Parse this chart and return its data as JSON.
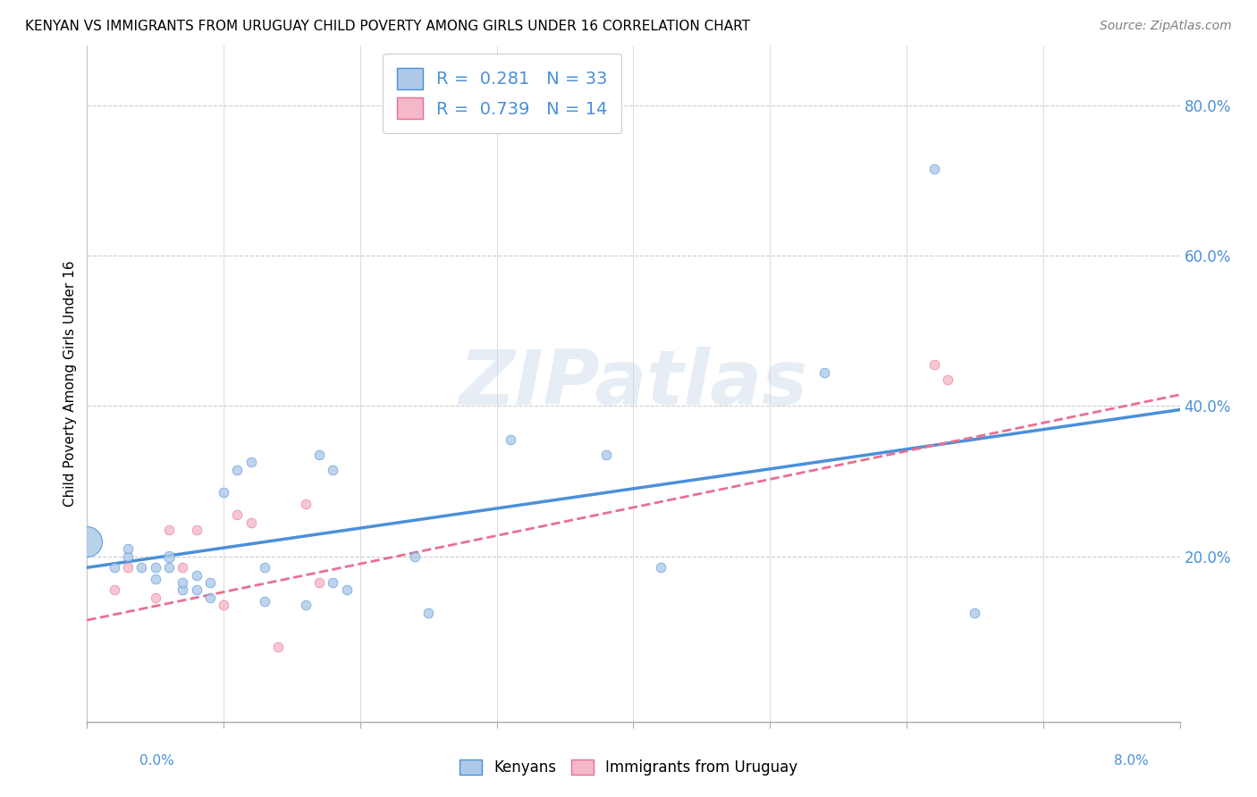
{
  "title": "KENYAN VS IMMIGRANTS FROM URUGUAY CHILD POVERTY AMONG GIRLS UNDER 16 CORRELATION CHART",
  "source": "Source: ZipAtlas.com",
  "ylabel": "Child Poverty Among Girls Under 16",
  "xlim": [
    0.0,
    0.08
  ],
  "ylim": [
    -0.02,
    0.88
  ],
  "kenyan_R": 0.281,
  "kenyan_N": 33,
  "uruguay_R": 0.739,
  "uruguay_N": 14,
  "kenyan_color": "#aec9e8",
  "uruguay_color": "#f4b8c8",
  "kenyan_line_color": "#4a90d9",
  "uruguay_line_color": "#e87090",
  "kenyan_scatter_x": [
    0.0,
    0.002,
    0.003,
    0.003,
    0.004,
    0.005,
    0.005,
    0.006,
    0.006,
    0.007,
    0.007,
    0.008,
    0.008,
    0.009,
    0.009,
    0.01,
    0.011,
    0.012,
    0.013,
    0.013,
    0.016,
    0.017,
    0.018,
    0.018,
    0.019,
    0.024,
    0.025,
    0.031,
    0.038,
    0.042,
    0.054,
    0.062,
    0.065
  ],
  "kenyan_scatter_y": [
    0.22,
    0.185,
    0.2,
    0.21,
    0.185,
    0.17,
    0.185,
    0.185,
    0.2,
    0.155,
    0.165,
    0.175,
    0.155,
    0.145,
    0.165,
    0.285,
    0.315,
    0.325,
    0.14,
    0.185,
    0.135,
    0.335,
    0.315,
    0.165,
    0.155,
    0.2,
    0.125,
    0.355,
    0.335,
    0.185,
    0.445,
    0.715,
    0.125
  ],
  "kenyan_scatter_sizes": [
    600,
    60,
    60,
    60,
    60,
    60,
    60,
    60,
    80,
    60,
    60,
    60,
    60,
    60,
    60,
    60,
    60,
    60,
    60,
    60,
    60,
    60,
    60,
    60,
    60,
    60,
    60,
    60,
    60,
    60,
    60,
    60,
    60
  ],
  "uruguay_scatter_x": [
    0.002,
    0.003,
    0.005,
    0.006,
    0.007,
    0.008,
    0.01,
    0.011,
    0.012,
    0.014,
    0.016,
    0.017,
    0.062,
    0.063
  ],
  "uruguay_scatter_y": [
    0.155,
    0.185,
    0.145,
    0.235,
    0.185,
    0.235,
    0.135,
    0.255,
    0.245,
    0.08,
    0.27,
    0.165,
    0.455,
    0.435
  ],
  "uruguay_scatter_sizes": [
    60,
    60,
    60,
    60,
    60,
    60,
    60,
    60,
    60,
    60,
    60,
    60,
    60,
    60
  ],
  "kenyan_trend_x": [
    0.0,
    0.08
  ],
  "kenyan_trend_y": [
    0.185,
    0.395
  ],
  "uruguay_trend_x": [
    0.0,
    0.08
  ],
  "uruguay_trend_y": [
    0.115,
    0.415
  ],
  "ytick_positions": [
    0.0,
    0.2,
    0.4,
    0.6,
    0.8
  ],
  "ytick_labels": [
    "",
    "20.0%",
    "40.0%",
    "60.0%",
    "80.0%"
  ],
  "xtick_positions": [
    0.0,
    0.01,
    0.02,
    0.03,
    0.04,
    0.05,
    0.06,
    0.07,
    0.08
  ],
  "watermark_text": "ZIPatlas",
  "background_color": "#ffffff",
  "grid_color": "#cccccc",
  "legend1_label": "R =  0.281   N = 33",
  "legend2_label": "R =  0.739   N = 14"
}
